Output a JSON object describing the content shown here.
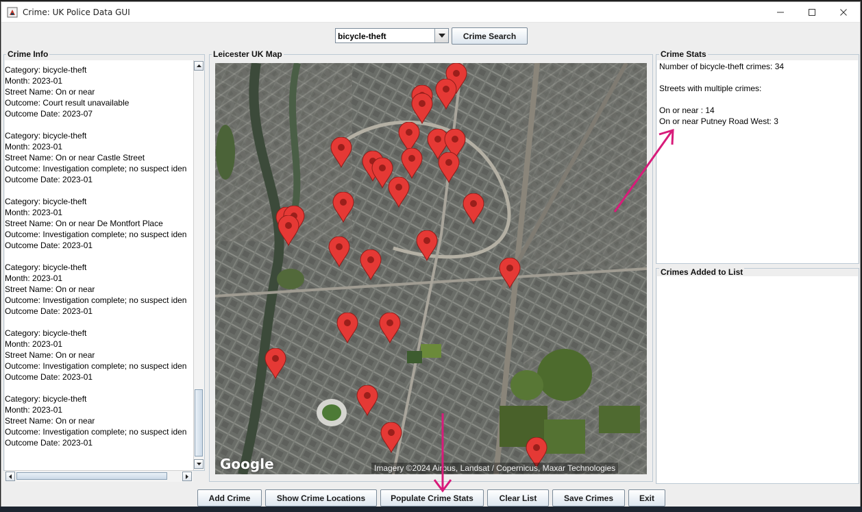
{
  "window": {
    "title": "Crime: UK Police Data GUI"
  },
  "toolbar": {
    "category_selected": "bicycle-theft",
    "search_label": "Crime Search"
  },
  "crime_info": {
    "title": "Crime Info",
    "lines": [
      "Category: bicycle-theft",
      "Month: 2023-01",
      "Street Name: On or near",
      "Outcome: Court result unavailable",
      "Outcome Date: 2023-07",
      "",
      "Category: bicycle-theft",
      "Month: 2023-01",
      "Street Name: On or near Castle Street",
      "Outcome: Investigation complete; no suspect iden",
      "Outcome Date: 2023-01",
      "",
      "Category: bicycle-theft",
      "Month: 2023-01",
      "Street Name: On or near De Montfort Place",
      "Outcome: Investigation complete; no suspect iden",
      "Outcome Date: 2023-01",
      "",
      "Category: bicycle-theft",
      "Month: 2023-01",
      "Street Name: On or near",
      "Outcome: Investigation complete; no suspect iden",
      "Outcome Date: 2023-01",
      "",
      "Category: bicycle-theft",
      "Month: 2023-01",
      "Street Name: On or near",
      "Outcome: Investigation complete; no suspect iden",
      "Outcome Date: 2023-01",
      "",
      "Category: bicycle-theft",
      "Month: 2023-01",
      "Street Name: On or near",
      "Outcome: Investigation complete; no suspect iden",
      "Outcome Date: 2023-01"
    ]
  },
  "map": {
    "title": "Leicester UK Map",
    "caption": "Imagery ©2024 Airbus, Landsat / Copernicus, Maxar Technologies",
    "logo": "Google",
    "marker_count": 31
  },
  "crime_stats": {
    "title": "Crime Stats",
    "lines": [
      "Number of bicycle-theft crimes: 34",
      "",
      "Streets with multiple crimes:",
      "",
      "On or near : 14",
      "On or near Putney Road West: 3"
    ]
  },
  "crimes_added": {
    "title": "Crimes Added to List"
  },
  "buttons": {
    "add": "Add Crime",
    "show": "Show Crime Locations",
    "populate": "Populate Crime Stats",
    "clear": "Clear List",
    "save": "Save Crimes",
    "exit": "Exit"
  },
  "colors": {
    "marker": "#e53935",
    "annotation_arrow": "#d81b7a",
    "panel_border": "#bcc9d4"
  }
}
